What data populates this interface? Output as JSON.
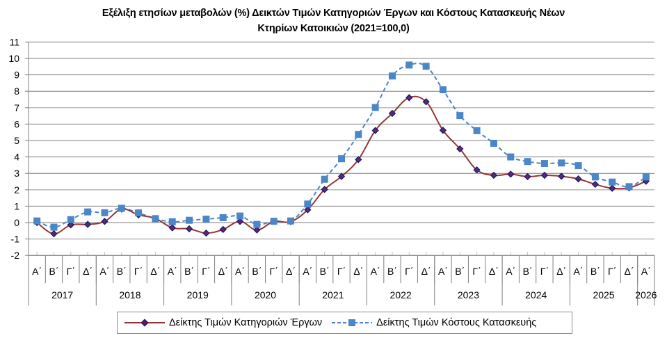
{
  "title": {
    "line1": "Εξέλιξη ετησίων μεταβολών (%) Δεικτών Τιμών Κατηγοριών Έργων και Κόστους Κατασκευής Νέων",
    "line2": "Κτηρίων Κατοικιών (2021=100,0)"
  },
  "legend": {
    "series1": "Δείκτης Τιμών Κατηγοριών Έργων",
    "series2": "Δείκτης Τιμών Κόστους Κατασκευής"
  },
  "colors": {
    "series1_line": "#943634",
    "series1_marker": "#1f1a5e",
    "series2": "#4a86c8",
    "grid": "#7f7f7f",
    "grid_light": "#bfbfbf"
  },
  "chart_data": {
    "type": "line",
    "title": "Εξέλιξη ετησίων μεταβολών (%) Δεικτών Τιμών Κατηγοριών Έργων και Κόστους Κατασκευής Νέων Κτηρίων Κατοικιών (2021=100,0)",
    "xlabel": "",
    "ylabel": "",
    "ylim": [
      -2,
      11
    ],
    "yticks": [
      -2,
      -1,
      0,
      1,
      2,
      3,
      4,
      5,
      6,
      7,
      8,
      9,
      10,
      11
    ],
    "grid": true,
    "legend_position": "bottom",
    "quarter_labels": [
      "Α΄",
      "Β΄",
      "Γ΄",
      "Δ΄"
    ],
    "years": [
      {
        "label": "2017",
        "quarters": 4
      },
      {
        "label": "2018",
        "quarters": 4
      },
      {
        "label": "2019",
        "quarters": 4
      },
      {
        "label": "2020",
        "quarters": 4
      },
      {
        "label": "2021",
        "quarters": 4
      },
      {
        "label": "2022",
        "quarters": 4
      },
      {
        "label": "2023",
        "quarters": 4
      },
      {
        "label": "2024",
        "quarters": 4
      },
      {
        "label": "2025",
        "quarters": 4
      },
      {
        "label": "2026",
        "quarters": 1
      }
    ],
    "categories": [
      "2017 Α΄",
      "2017 Β΄",
      "2017 Γ΄",
      "2017 Δ΄",
      "2018 Α΄",
      "2018 Β΄",
      "2018 Γ΄",
      "2018 Δ΄",
      "2019 Α΄",
      "2019 Β΄",
      "2019 Γ΄",
      "2019 Δ΄",
      "2020 Α΄",
      "2020 Β΄",
      "2020 Γ΄",
      "2020 Δ΄",
      "2021 Α΄",
      "2021 Β΄",
      "2021 Γ΄",
      "2021 Δ΄",
      "2022 Α΄",
      "2022 Β΄",
      "2022 Γ΄",
      "2022 Δ΄",
      "2023 Α΄",
      "2023 Β΄",
      "2023 Γ΄",
      "2023 Δ΄",
      "2024 Α΄",
      "2024 Β΄",
      "2024 Γ΄",
      "2024 Δ΄",
      "2025 Α΄",
      "2025 Β΄",
      "2025 Γ΄",
      "2025 Δ΄",
      "2026 Α΄"
    ],
    "series": [
      {
        "name": "Δείκτης Τιμών Κατηγοριών Έργων",
        "style": "solid line, diamond markers",
        "values": [
          0.0,
          -0.68,
          -0.14,
          -0.11,
          0.07,
          0.82,
          0.47,
          0.25,
          -0.32,
          -0.38,
          -0.64,
          -0.42,
          0.07,
          -0.45,
          0.07,
          0.06,
          0.78,
          2.02,
          2.81,
          3.84,
          5.61,
          6.65,
          7.61,
          7.36,
          5.62,
          4.49,
          3.21,
          2.88,
          2.95,
          2.8,
          2.88,
          2.82,
          2.66,
          2.33,
          2.09,
          2.12,
          2.52
        ]
      },
      {
        "name": "Δείκτης Τιμών Κόστους Κατασκευής",
        "style": "dashed line, square markers",
        "values": [
          0.1,
          -0.28,
          0.18,
          0.65,
          0.6,
          0.87,
          0.59,
          0.24,
          0.05,
          0.14,
          0.21,
          0.3,
          0.4,
          -0.11,
          0.08,
          0.1,
          1.13,
          2.64,
          3.89,
          5.37,
          7.01,
          8.93,
          9.6,
          9.52,
          8.09,
          6.52,
          5.6,
          4.83,
          4.0,
          3.72,
          3.6,
          3.63,
          3.47,
          2.78,
          2.47,
          2.19,
          2.78
        ]
      }
    ]
  }
}
